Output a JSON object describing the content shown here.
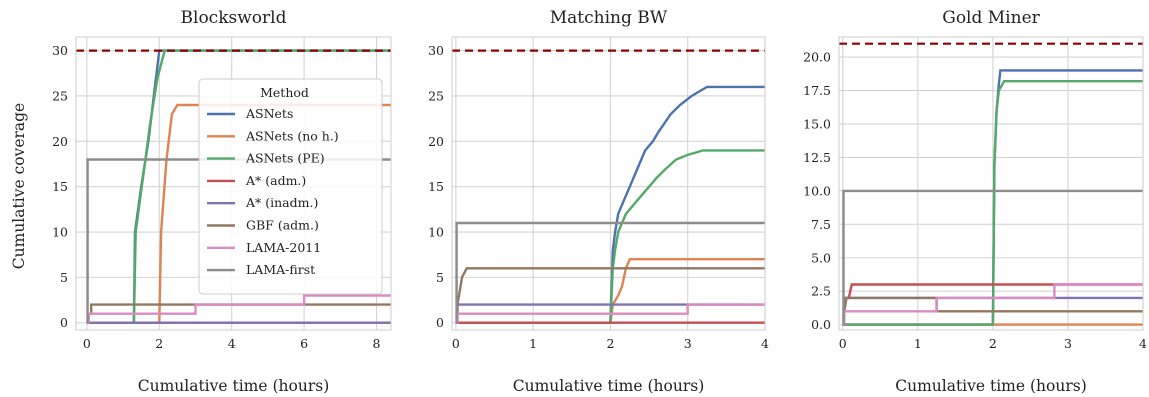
{
  "chart_data": [
    {
      "type": "line",
      "title": "Blocksworld",
      "xlabel": "Cumulative time (hours)",
      "ylabel": "Cumulative coverage",
      "xlim": [
        -0.3,
        8.4
      ],
      "ylim": [
        -0.8,
        31.5
      ],
      "xticks": [
        0,
        2,
        4,
        6,
        8
      ],
      "yticks": [
        0,
        5,
        10,
        15,
        20,
        25,
        30
      ],
      "ytick_labels": [
        "0",
        "5",
        "10",
        "15",
        "20",
        "25",
        "30"
      ],
      "grid": true,
      "reference_line": {
        "y": 30,
        "style": "dashed",
        "color": "#8b0000"
      },
      "series": [
        {
          "name": "ASNets",
          "color": "#4c72b0",
          "points": [
            [
              0,
              0
            ],
            [
              1.3,
              0
            ],
            [
              1.33,
              10
            ],
            [
              1.5,
              15
            ],
            [
              1.7,
              20
            ],
            [
              1.85,
              25
            ],
            [
              2.0,
              30
            ],
            [
              8.4,
              30
            ]
          ]
        },
        {
          "name": "ASNets (no h.)",
          "color": "#dd8452",
          "points": [
            [
              0,
              0
            ],
            [
              2.0,
              0
            ],
            [
              2.05,
              10
            ],
            [
              2.2,
              18
            ],
            [
              2.35,
              23
            ],
            [
              2.5,
              24
            ],
            [
              8.4,
              24
            ]
          ]
        },
        {
          "name": "ASNets (PE)",
          "color": "#55a868",
          "points": [
            [
              0,
              0
            ],
            [
              1.3,
              0
            ],
            [
              1.35,
              10
            ],
            [
              1.55,
              16
            ],
            [
              1.75,
              22
            ],
            [
              1.95,
              27
            ],
            [
              2.15,
              30
            ],
            [
              8.4,
              30
            ]
          ]
        },
        {
          "name": "A* (adm.)",
          "color": "#c44e52",
          "points": [
            [
              0,
              0
            ],
            [
              8.4,
              0
            ]
          ]
        },
        {
          "name": "A* (inadm.)",
          "color": "#8172b3",
          "points": [
            [
              0,
              0
            ],
            [
              8.4,
              0
            ]
          ]
        },
        {
          "name": "GBF (adm.)",
          "color": "#937860",
          "points": [
            [
              0,
              0
            ],
            [
              0.05,
              0
            ],
            [
              0.05,
              1
            ],
            [
              0.12,
              1
            ],
            [
              0.12,
              2
            ],
            [
              8.4,
              2
            ]
          ]
        },
        {
          "name": "LAMA-2011",
          "color": "#da8bc3",
          "points": [
            [
              0,
              0
            ],
            [
              0.05,
              0
            ],
            [
              0.05,
              1
            ],
            [
              3.0,
              1
            ],
            [
              3.0,
              2
            ],
            [
              6.0,
              2
            ],
            [
              6.0,
              3
            ],
            [
              8.4,
              3
            ]
          ]
        },
        {
          "name": "LAMA-first",
          "color": "#8c8c8c",
          "points": [
            [
              0,
              0
            ],
            [
              0.02,
              0
            ],
            [
              0.02,
              18
            ],
            [
              8.4,
              18
            ]
          ]
        }
      ],
      "legend": {
        "title": "Method",
        "placement": "upper-right",
        "entries": [
          "ASNets",
          "ASNets (no h.)",
          "ASNets (PE)",
          "A* (adm.)",
          "A* (inadm.)",
          "GBF (adm.)",
          "LAMA-2011",
          "LAMA-first"
        ]
      }
    },
    {
      "type": "line",
      "title": "Matching BW",
      "xlabel": "Cumulative time (hours)",
      "ylabel": "",
      "xlim": [
        -0.05,
        4
      ],
      "ylim": [
        -0.8,
        31.5
      ],
      "xticks": [
        0,
        1,
        2,
        3,
        4
      ],
      "yticks": [
        0,
        5,
        10,
        15,
        20,
        25,
        30
      ],
      "ytick_labels": [
        "0",
        "5",
        "10",
        "15",
        "20",
        "25",
        "30"
      ],
      "grid": true,
      "reference_line": {
        "y": 30,
        "style": "dashed",
        "color": "#8b0000"
      },
      "series": [
        {
          "name": "ASNets",
          "color": "#4c72b0",
          "points": [
            [
              0,
              0
            ],
            [
              2.0,
              0
            ],
            [
              2.03,
              8
            ],
            [
              2.06,
              10
            ],
            [
              2.1,
              12
            ],
            [
              2.15,
              13
            ],
            [
              2.2,
              14
            ],
            [
              2.25,
              15
            ],
            [
              2.3,
              16
            ],
            [
              2.35,
              17
            ],
            [
              2.4,
              18
            ],
            [
              2.45,
              19
            ],
            [
              2.55,
              20
            ],
            [
              2.62,
              21
            ],
            [
              2.7,
              22
            ],
            [
              2.78,
              23
            ],
            [
              2.9,
              24
            ],
            [
              3.05,
              25
            ],
            [
              3.25,
              26
            ],
            [
              4,
              26
            ]
          ]
        },
        {
          "name": "ASNets (no h.)",
          "color": "#dd8452",
          "points": [
            [
              0,
              0
            ],
            [
              2.0,
              0
            ],
            [
              2.03,
              2
            ],
            [
              2.1,
              3
            ],
            [
              2.15,
              4
            ],
            [
              2.2,
              6
            ],
            [
              2.25,
              7
            ],
            [
              4,
              7
            ]
          ]
        },
        {
          "name": "ASNets (PE)",
          "color": "#55a868",
          "points": [
            [
              0,
              0
            ],
            [
              2.0,
              0
            ],
            [
              2.03,
              6
            ],
            [
              2.06,
              8
            ],
            [
              2.1,
              10
            ],
            [
              2.15,
              11
            ],
            [
              2.2,
              12
            ],
            [
              2.3,
              13
            ],
            [
              2.4,
              14
            ],
            [
              2.5,
              15
            ],
            [
              2.6,
              16
            ],
            [
              2.72,
              17
            ],
            [
              2.85,
              18
            ],
            [
              3.0,
              18.5
            ],
            [
              3.2,
              19
            ],
            [
              4,
              19
            ]
          ]
        },
        {
          "name": "A* (adm.)",
          "color": "#c44e52",
          "points": [
            [
              0,
              0
            ],
            [
              4,
              0
            ]
          ]
        },
        {
          "name": "A* (inadm.)",
          "color": "#8172b3",
          "points": [
            [
              0,
              0
            ],
            [
              0.02,
              0
            ],
            [
              0.02,
              2
            ],
            [
              4,
              2
            ]
          ]
        },
        {
          "name": "GBF (adm.)",
          "color": "#937860",
          "points": [
            [
              0,
              0
            ],
            [
              0.02,
              0
            ],
            [
              0.02,
              2
            ],
            [
              0.04,
              3
            ],
            [
              0.06,
              4
            ],
            [
              0.08,
              5
            ],
            [
              0.14,
              6
            ],
            [
              4,
              6
            ]
          ]
        },
        {
          "name": "LAMA-2011",
          "color": "#da8bc3",
          "points": [
            [
              0,
              0
            ],
            [
              0.02,
              0
            ],
            [
              0.02,
              1
            ],
            [
              3.0,
              1
            ],
            [
              3.0,
              2
            ],
            [
              4,
              2
            ]
          ]
        },
        {
          "name": "LAMA-first",
          "color": "#8c8c8c",
          "points": [
            [
              0,
              0
            ],
            [
              0.01,
              0
            ],
            [
              0.01,
              11
            ],
            [
              4,
              11
            ]
          ]
        }
      ]
    },
    {
      "type": "line",
      "title": "Gold Miner",
      "xlabel": "Cumulative time (hours)",
      "ylabel": "",
      "xlim": [
        -0.05,
        4
      ],
      "ylim": [
        -0.4,
        21.5
      ],
      "xticks": [
        0,
        1,
        2,
        3,
        4
      ],
      "yticks": [
        0,
        2.5,
        5,
        7.5,
        10,
        12.5,
        15,
        17.5,
        20
      ],
      "ytick_labels": [
        "0.0",
        "2.5",
        "5.0",
        "7.5",
        "10.0",
        "12.5",
        "15.0",
        "17.5",
        "20.0"
      ],
      "grid": true,
      "reference_line": {
        "y": 21,
        "style": "dashed",
        "color": "#8b0000"
      },
      "series": [
        {
          "name": "ASNets",
          "color": "#4c72b0",
          "points": [
            [
              0,
              0
            ],
            [
              2.0,
              0
            ],
            [
              2.02,
              12
            ],
            [
              2.05,
              16
            ],
            [
              2.08,
              18
            ],
            [
              2.1,
              19
            ],
            [
              4,
              19
            ]
          ]
        },
        {
          "name": "ASNets (no h.)",
          "color": "#dd8452",
          "points": [
            [
              0,
              0
            ],
            [
              4,
              0
            ]
          ]
        },
        {
          "name": "ASNets (PE)",
          "color": "#55a868",
          "points": [
            [
              0,
              0
            ],
            [
              2.0,
              0
            ],
            [
              2.02,
              12
            ],
            [
              2.05,
              16
            ],
            [
              2.08,
              17.5
            ],
            [
              2.15,
              18.2
            ],
            [
              4,
              18.2
            ]
          ]
        },
        {
          "name": "A* (adm.)",
          "color": "#c44e52",
          "points": [
            [
              0,
              0
            ],
            [
              0.02,
              0
            ],
            [
              0.02,
              2
            ],
            [
              0.08,
              2
            ],
            [
              0.12,
              3
            ],
            [
              2.8,
              3
            ],
            [
              4,
              3
            ]
          ]
        },
        {
          "name": "A* (inadm.)",
          "color": "#8172b3",
          "points": [
            [
              0,
              0
            ],
            [
              0.02,
              0
            ],
            [
              0.02,
              2
            ],
            [
              4,
              2
            ]
          ]
        },
        {
          "name": "GBF (adm.)",
          "color": "#937860",
          "points": [
            [
              0,
              0
            ],
            [
              0.02,
              0
            ],
            [
              0.02,
              1
            ],
            [
              0.05,
              2
            ],
            [
              1.25,
              2
            ],
            [
              1.25,
              1
            ],
            [
              4,
              1
            ]
          ]
        },
        {
          "name": "LAMA-2011",
          "color": "#da8bc3",
          "points": [
            [
              0,
              0
            ],
            [
              0.02,
              0
            ],
            [
              0.02,
              1
            ],
            [
              1.25,
              1
            ],
            [
              1.25,
              2
            ],
            [
              2.82,
              2
            ],
            [
              2.82,
              3
            ],
            [
              4,
              3
            ]
          ]
        },
        {
          "name": "LAMA-first",
          "color": "#8c8c8c",
          "points": [
            [
              0,
              0
            ],
            [
              0.01,
              0
            ],
            [
              0.01,
              10
            ],
            [
              4,
              10
            ]
          ]
        }
      ]
    }
  ]
}
